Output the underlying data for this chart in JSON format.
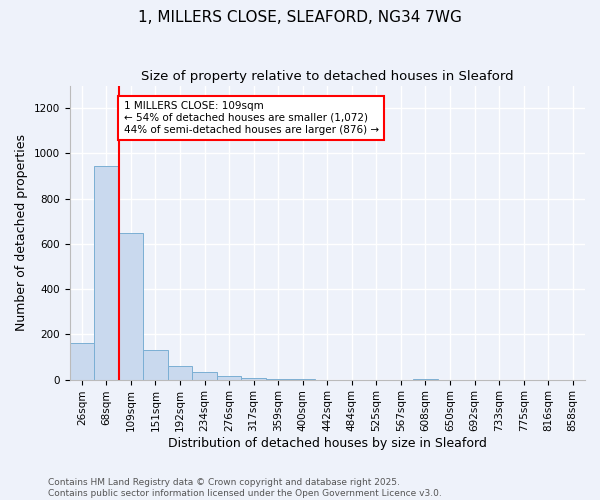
{
  "title": "1, MILLERS CLOSE, SLEAFORD, NG34 7WG",
  "subtitle": "Size of property relative to detached houses in Sleaford",
  "xlabel": "Distribution of detached houses by size in Sleaford",
  "ylabel": "Number of detached properties",
  "categories": [
    "26sqm",
    "68sqm",
    "109sqm",
    "151sqm",
    "192sqm",
    "234sqm",
    "276sqm",
    "317sqm",
    "359sqm",
    "400sqm",
    "442sqm",
    "484sqm",
    "525sqm",
    "567sqm",
    "608sqm",
    "650sqm",
    "692sqm",
    "733sqm",
    "775sqm",
    "816sqm",
    "858sqm"
  ],
  "values": [
    160,
    945,
    650,
    130,
    60,
    32,
    14,
    5,
    2,
    1,
    0,
    0,
    0,
    0,
    1,
    0,
    0,
    0,
    0,
    0,
    0
  ],
  "bar_color": "#c9d9ee",
  "bar_edge_color": "#7bafd4",
  "background_color": "#eef2fa",
  "grid_color": "#ffffff",
  "red_line_index": 2,
  "annotation_line1": "1 MILLERS CLOSE: 109sqm",
  "annotation_line2": "← 54% of detached houses are smaller (1,072)",
  "annotation_line3": "44% of semi-detached houses are larger (876) →",
  "ylim": [
    0,
    1300
  ],
  "yticks": [
    0,
    200,
    400,
    600,
    800,
    1000,
    1200
  ],
  "footnote1": "Contains HM Land Registry data © Crown copyright and database right 2025.",
  "footnote2": "Contains public sector information licensed under the Open Government Licence v3.0.",
  "title_fontsize": 11,
  "subtitle_fontsize": 9.5,
  "axis_label_fontsize": 9,
  "tick_fontsize": 7.5,
  "annotation_fontsize": 7.5,
  "footnote_fontsize": 6.5
}
